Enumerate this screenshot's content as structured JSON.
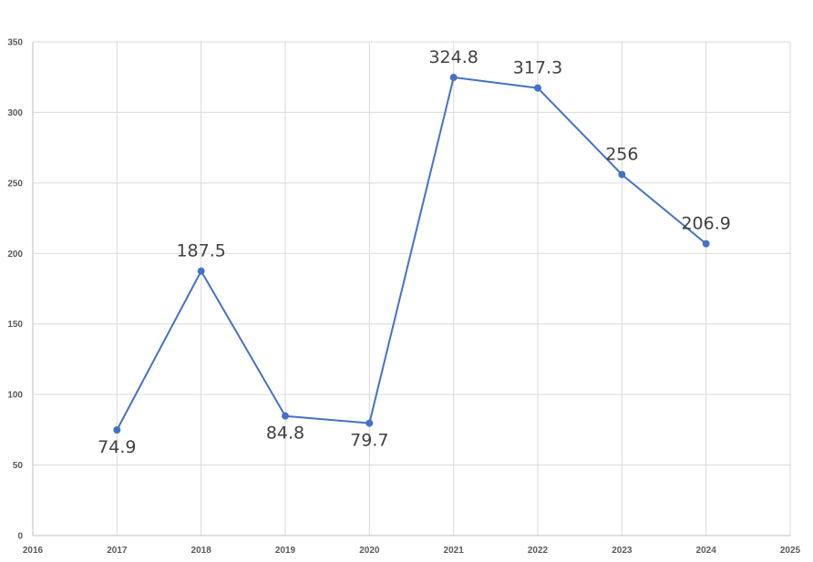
{
  "chart_data": {
    "type": "line",
    "title": "",
    "xlabel": "",
    "ylabel": "",
    "xlim": [
      2016,
      2025
    ],
    "ylim": [
      0,
      350
    ],
    "x_ticks": [
      2016,
      2017,
      2018,
      2019,
      2020,
      2021,
      2022,
      2023,
      2024,
      2025
    ],
    "y_ticks": [
      0,
      50,
      100,
      150,
      200,
      250,
      300,
      350
    ],
    "grid": true,
    "legend": "none",
    "series": [
      {
        "color": "#4472C4",
        "x": [
          2017,
          2018,
          2019,
          2020,
          2021,
          2022,
          2023,
          2024
        ],
        "y": [
          74.9,
          187.5,
          84.8,
          79.7,
          324.8,
          317.3,
          256,
          206.9
        ],
        "labels": [
          "74.9",
          "187.5",
          "84.8",
          "79.7",
          "324.8",
          "317.3",
          "256",
          "206.9"
        ],
        "label_positions": [
          "below",
          "above",
          "below",
          "below",
          "above",
          "above",
          "above",
          "above"
        ]
      }
    ]
  }
}
